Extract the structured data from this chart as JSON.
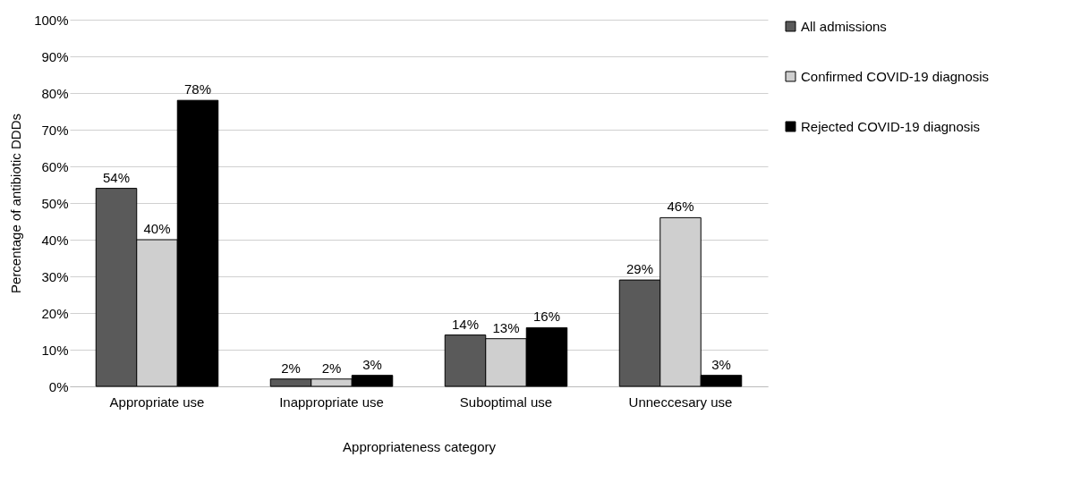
{
  "chart_data": {
    "type": "bar",
    "xlabel": "Appropriateness category",
    "ylabel": "Percentage of antibiotic DDDs",
    "categories": [
      "Appropriate use",
      "Inappropriate use",
      "Suboptimal use",
      "Unneccesary use"
    ],
    "series": [
      {
        "name": "All admissions",
        "color": "#5a5a5a",
        "values": [
          54,
          2,
          14,
          29
        ],
        "value_labels": [
          "54%",
          "2%",
          "14%",
          "29%"
        ]
      },
      {
        "name": "Confirmed COVID-19 diagnosis",
        "color": "#cfcfcf",
        "values": [
          40,
          2,
          13,
          46
        ],
        "value_labels": [
          "40%",
          "2%",
          "13%",
          "46%"
        ]
      },
      {
        "name": "Rejected COVID-19 diagnosis",
        "color": "#000000",
        "values": [
          78,
          3,
          16,
          3
        ],
        "value_labels": [
          "78%",
          "3%",
          "16%",
          "3%"
        ]
      }
    ],
    "ylim": [
      0,
      100
    ],
    "yticks": [
      {
        "value": 0,
        "label": "0%"
      },
      {
        "value": 10,
        "label": "10%"
      },
      {
        "value": 20,
        "label": "20%"
      },
      {
        "value": 30,
        "label": "30%"
      },
      {
        "value": 40,
        "label": "40%"
      },
      {
        "value": 50,
        "label": "50%"
      },
      {
        "value": 60,
        "label": "60%"
      },
      {
        "value": 70,
        "label": "70%"
      },
      {
        "value": 80,
        "label": "80%"
      },
      {
        "value": 90,
        "label": "90%"
      },
      {
        "value": 100,
        "label": "100%"
      }
    ],
    "grid": "y",
    "legend": "right"
  }
}
